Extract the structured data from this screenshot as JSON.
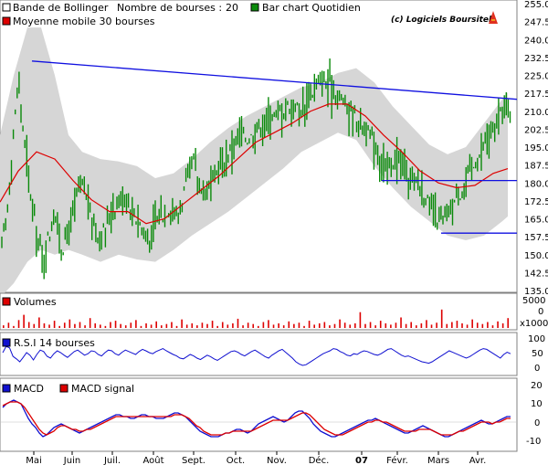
{
  "header": {
    "bollinger_label": "Bande de Bollinger",
    "bourses_label": "Nombre de bourses :",
    "bourses_value": "20",
    "barchart_label": "Bar chart Quotidien",
    "ma_label": "Moyenne mobile 30 bourses",
    "copyright": "(c) Logiciels Boursitel"
  },
  "volume_panel": {
    "label": "Volumes",
    "y_ticks": [
      "5000",
      "0",
      "x1000"
    ]
  },
  "rsi_panel": {
    "label": "R.S.I 14 bourses",
    "y_ticks": [
      "100",
      "50",
      "0"
    ]
  },
  "macd_panel": {
    "label_macd": "MACD",
    "label_signal": "MACD signal",
    "y_ticks": [
      "20",
      "10",
      "0",
      "-10"
    ]
  },
  "colors": {
    "bars": "#0a8a0a",
    "moving_average": "#dd0000",
    "bollinger_band": "#d6d6d6",
    "trendline": "#1010e0",
    "rsi": "#1010d0",
    "macd": "#1010d0",
    "macd_signal": "#dd0000",
    "volume": "#dd0000"
  },
  "chart_data": [
    {
      "type": "bar",
      "subtype": "ohlc-daily",
      "y_ticks": [
        "255.0",
        "247.5",
        "240.0",
        "232.5",
        "225.0",
        "217.5",
        "210.0",
        "202.5",
        "195.0",
        "187.5",
        "180.0",
        "172.5",
        "165.0",
        "157.5",
        "150.0",
        "142.5",
        "135.0"
      ],
      "ylim": [
        135,
        255
      ],
      "x_tick_labels": [
        "Mai",
        "Juin",
        "Juil.",
        "Août",
        "Sept.",
        "Oct.",
        "Nov.",
        "Déc.",
        "07",
        "Févr.",
        "Mars",
        "Avr."
      ],
      "price_path": [
        [
          0,
          150
        ],
        [
          8,
          168
        ],
        [
          14,
          198
        ],
        [
          20,
          222
        ],
        [
          26,
          200
        ],
        [
          33,
          177
        ],
        [
          40,
          160
        ],
        [
          46,
          148
        ],
        [
          53,
          157
        ],
        [
          60,
          167
        ],
        [
          68,
          152
        ],
        [
          75,
          160
        ],
        [
          82,
          172
        ],
        [
          90,
          180
        ],
        [
          98,
          169
        ],
        [
          106,
          158
        ],
        [
          114,
          160
        ],
        [
          122,
          168
        ],
        [
          130,
          173
        ],
        [
          138,
          174
        ],
        [
          146,
          168
        ],
        [
          154,
          162
        ],
        [
          162,
          155
        ],
        [
          170,
          163
        ],
        [
          178,
          167
        ],
        [
          186,
          170
        ],
        [
          194,
          166
        ],
        [
          200,
          174
        ],
        [
          206,
          183
        ],
        [
          212,
          189
        ],
        [
          218,
          180
        ],
        [
          224,
          176
        ],
        [
          232,
          181
        ],
        [
          240,
          186
        ],
        [
          248,
          190
        ],
        [
          256,
          196
        ],
        [
          264,
          200
        ],
        [
          272,
          198
        ],
        [
          280,
          202
        ],
        [
          288,
          205
        ],
        [
          296,
          208
        ],
        [
          304,
          209
        ],
        [
          312,
          211
        ],
        [
          320,
          213
        ],
        [
          328,
          210
        ],
        [
          336,
          215
        ],
        [
          344,
          219
        ],
        [
          352,
          222
        ],
        [
          360,
          221
        ],
        [
          368,
          218
        ],
        [
          376,
          214
        ],
        [
          384,
          210
        ],
        [
          392,
          206
        ],
        [
          400,
          203
        ],
        [
          408,
          197
        ],
        [
          416,
          191
        ],
        [
          424,
          186
        ],
        [
          432,
          190
        ],
        [
          440,
          188
        ],
        [
          448,
          183
        ],
        [
          456,
          181
        ],
        [
          464,
          176
        ],
        [
          472,
          168
        ],
        [
          480,
          163
        ],
        [
          488,
          165
        ],
        [
          496,
          171
        ],
        [
          504,
          176
        ],
        [
          512,
          182
        ],
        [
          520,
          188
        ],
        [
          528,
          194
        ],
        [
          536,
          199
        ],
        [
          544,
          205
        ],
        [
          550,
          210
        ],
        [
          556,
          213
        ],
        [
          561,
          206
        ]
      ],
      "moving_average_30": [
        [
          0,
          172
        ],
        [
          20,
          185
        ],
        [
          40,
          193
        ],
        [
          60,
          190
        ],
        [
          80,
          181
        ],
        [
          100,
          173
        ],
        [
          120,
          168
        ],
        [
          140,
          168
        ],
        [
          160,
          163
        ],
        [
          180,
          165
        ],
        [
          200,
          171
        ],
        [
          220,
          177
        ],
        [
          240,
          183
        ],
        [
          260,
          190
        ],
        [
          280,
          197
        ],
        [
          300,
          201
        ],
        [
          320,
          205
        ],
        [
          340,
          210
        ],
        [
          360,
          213
        ],
        [
          380,
          213
        ],
        [
          400,
          208
        ],
        [
          420,
          200
        ],
        [
          440,
          193
        ],
        [
          460,
          185
        ],
        [
          480,
          180
        ],
        [
          500,
          178
        ],
        [
          520,
          179
        ],
        [
          540,
          184
        ],
        [
          556,
          186
        ]
      ],
      "bollinger_upper": [
        [
          0,
          200
        ],
        [
          15,
          225
        ],
        [
          30,
          245
        ],
        [
          45,
          245
        ],
        [
          60,
          225
        ],
        [
          75,
          200
        ],
        [
          90,
          193
        ],
        [
          110,
          190
        ],
        [
          130,
          189
        ],
        [
          150,
          187
        ],
        [
          170,
          182
        ],
        [
          190,
          184
        ],
        [
          210,
          190
        ],
        [
          230,
          197
        ],
        [
          250,
          203
        ],
        [
          270,
          208
        ],
        [
          290,
          212
        ],
        [
          310,
          216
        ],
        [
          330,
          220
        ],
        [
          350,
          222
        ],
        [
          370,
          226
        ],
        [
          390,
          228
        ],
        [
          410,
          222
        ],
        [
          430,
          212
        ],
        [
          450,
          204
        ],
        [
          470,
          196
        ],
        [
          490,
          192
        ],
        [
          510,
          195
        ],
        [
          530,
          205
        ],
        [
          550,
          215
        ],
        [
          556,
          218
        ]
      ],
      "bollinger_lower": [
        [
          0,
          132
        ],
        [
          15,
          138
        ],
        [
          30,
          147
        ],
        [
          45,
          152
        ],
        [
          60,
          150
        ],
        [
          75,
          152
        ],
        [
          90,
          150
        ],
        [
          110,
          147
        ],
        [
          130,
          150
        ],
        [
          150,
          148
        ],
        [
          170,
          147
        ],
        [
          190,
          152
        ],
        [
          210,
          158
        ],
        [
          230,
          163
        ],
        [
          250,
          168
        ],
        [
          270,
          174
        ],
        [
          290,
          180
        ],
        [
          310,
          186
        ],
        [
          330,
          193
        ],
        [
          350,
          197
        ],
        [
          370,
          201
        ],
        [
          390,
          198
        ],
        [
          410,
          187
        ],
        [
          430,
          178
        ],
        [
          450,
          170
        ],
        [
          470,
          164
        ],
        [
          490,
          158
        ],
        [
          510,
          156
        ],
        [
          530,
          158
        ],
        [
          550,
          164
        ],
        [
          556,
          166
        ]
      ],
      "trendline": [
        [
          35,
          231
        ],
        [
          566,
          215
        ]
      ],
      "support_1": [
        [
          418,
          181
        ],
        [
          566,
          181
        ]
      ],
      "support_2": [
        [
          483,
          159
        ],
        [
          566,
          159
        ]
      ]
    },
    {
      "type": "bar",
      "subtype": "volume",
      "ylim": [
        0,
        5000
      ],
      "values": [
        400,
        800,
        300,
        1200,
        2000,
        900,
        600,
        1600,
        700,
        500,
        1100,
        300,
        800,
        1300,
        600,
        900,
        400,
        1500,
        700,
        500,
        300,
        900,
        1100,
        600,
        400,
        800,
        1200,
        300,
        700,
        500,
        1000,
        400,
        600,
        900,
        300,
        1300,
        500,
        700,
        400,
        800,
        600,
        1100,
        300,
        900,
        500,
        700,
        1400,
        400,
        800,
        600,
        300,
        900,
        1200,
        500,
        700,
        400,
        1000,
        600,
        800,
        300,
        1100,
        500,
        700,
        900,
        400,
        600,
        1300,
        800,
        500,
        700,
        2400,
        600,
        900,
        400,
        1100,
        700,
        500,
        800,
        1600,
        600,
        900,
        400,
        700,
        1200,
        500,
        800,
        2800,
        600,
        900,
        1100,
        700,
        500,
        1300,
        800,
        600,
        900,
        400,
        1000,
        700,
        1500
      ]
    },
    {
      "type": "line",
      "series_name": "R.S.I 14 bourses",
      "ylim": [
        0,
        100
      ],
      "values": [
        55,
        72,
        68,
        45,
        38,
        30,
        42,
        55,
        48,
        35,
        50,
        62,
        58,
        45,
        40,
        52,
        60,
        55,
        48,
        42,
        50,
        58,
        62,
        55,
        48,
        52,
        60,
        58,
        50,
        46,
        55,
        62,
        60,
        52,
        48,
        56,
        62,
        58,
        54,
        50,
        58,
        64,
        60,
        55,
        52,
        58,
        62,
        66,
        60,
        55,
        50,
        46,
        40,
        38,
        44,
        50,
        46,
        40,
        36,
        42,
        48,
        44,
        38,
        34,
        40,
        46,
        52,
        58,
        60,
        56,
        50,
        46,
        52,
        58,
        62,
        56,
        50,
        44,
        40,
        48,
        54,
        60,
        64,
        56,
        48,
        40,
        30,
        24,
        20,
        22,
        28,
        34,
        40,
        46,
        52,
        56,
        60,
        66,
        64,
        58,
        54,
        48,
        46,
        52,
        50,
        56,
        60,
        58,
        54,
        50,
        48,
        52,
        58,
        64,
        66,
        60,
        54,
        48,
        44,
        46,
        42,
        38,
        34,
        30,
        28,
        26,
        30,
        36,
        42,
        48,
        54,
        60,
        56,
        52,
        48,
        44,
        40,
        44,
        50,
        56,
        62,
        66,
        64,
        58,
        52,
        46,
        40,
        50,
        56,
        52
      ]
    },
    {
      "type": "line",
      "series": [
        {
          "name": "MACD",
          "values": [
            8,
            10,
            11,
            12,
            11,
            10,
            6,
            2,
            -1,
            -3,
            -6,
            -8,
            -7,
            -5,
            -3,
            -2,
            -1,
            -2,
            -3,
            -4,
            -5,
            -6,
            -5,
            -4,
            -3,
            -2,
            -1,
            0,
            1,
            2,
            3,
            4,
            4,
            3,
            3,
            2,
            2,
            3,
            4,
            4,
            3,
            3,
            2,
            2,
            2,
            3,
            4,
            5,
            5,
            4,
            3,
            1,
            -1,
            -3,
            -5,
            -6,
            -7,
            -8,
            -8,
            -8,
            -7,
            -6,
            -6,
            -5,
            -4,
            -4,
            -5,
            -6,
            -5,
            -3,
            -1,
            0,
            1,
            2,
            3,
            2,
            1,
            0,
            1,
            3,
            5,
            6,
            6,
            4,
            2,
            -1,
            -3,
            -5,
            -6,
            -7,
            -8,
            -8,
            -7,
            -6,
            -5,
            -4,
            -3,
            -2,
            -1,
            0,
            1,
            1,
            2,
            1,
            0,
            -1,
            -2,
            -3,
            -4,
            -5,
            -6,
            -6,
            -5,
            -4,
            -3,
            -2,
            -3,
            -4,
            -5,
            -6,
            -7,
            -8,
            -8,
            -7,
            -6,
            -5,
            -4,
            -3,
            -2,
            -1,
            0,
            1,
            0,
            -1,
            -1,
            0,
            1,
            2,
            3,
            3
          ]
        },
        {
          "name": "MACD signal",
          "values": [
            9,
            10,
            11,
            11,
            11,
            10,
            8,
            5,
            2,
            -1,
            -4,
            -6,
            -7,
            -6,
            -5,
            -3,
            -2,
            -2,
            -3,
            -4,
            -4,
            -5,
            -5,
            -4,
            -4,
            -3,
            -2,
            -1,
            0,
            1,
            2,
            3,
            3,
            3,
            3,
            3,
            3,
            3,
            3,
            3,
            3,
            3,
            3,
            3,
            3,
            3,
            3,
            4,
            4,
            4,
            3,
            2,
            0,
            -2,
            -3,
            -5,
            -6,
            -7,
            -7,
            -7,
            -7,
            -6,
            -6,
            -5,
            -5,
            -5,
            -5,
            -5,
            -5,
            -4,
            -3,
            -2,
            -1,
            0,
            1,
            1,
            1,
            1,
            1,
            2,
            3,
            4,
            5,
            5,
            4,
            2,
            0,
            -2,
            -4,
            -5,
            -6,
            -7,
            -7,
            -7,
            -6,
            -5,
            -4,
            -3,
            -2,
            -1,
            0,
            0,
            1,
            1,
            0,
            0,
            -1,
            -2,
            -3,
            -4,
            -5,
            -5,
            -5,
            -5,
            -4,
            -4,
            -4,
            -4,
            -5,
            -6,
            -7,
            -7,
            -7,
            -7,
            -6,
            -5,
            -5,
            -4,
            -3,
            -2,
            -1,
            0,
            0,
            0,
            -1,
            0,
            0,
            1,
            2,
            2
          ]
        }
      ],
      "ylim": [
        -15,
        22
      ]
    }
  ]
}
